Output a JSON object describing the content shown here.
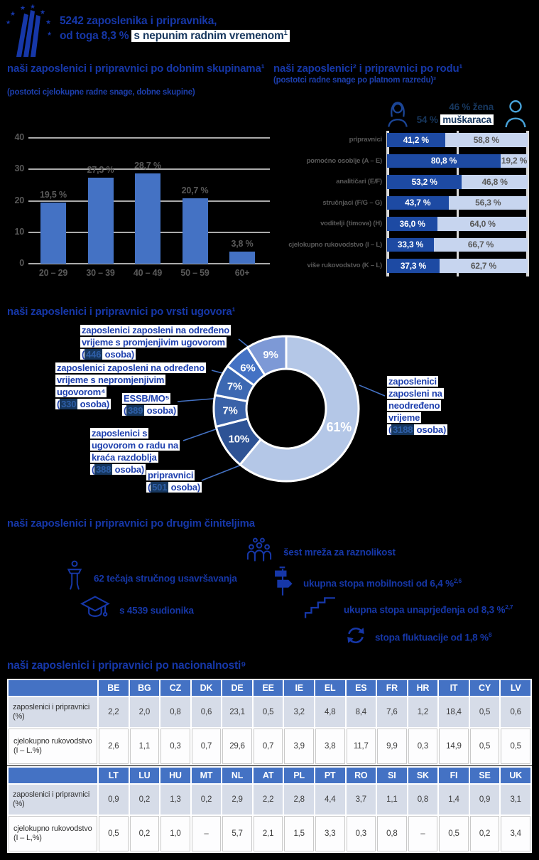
{
  "accent_colors": {
    "heading_blue": "#1637a8",
    "navy": "#17375e",
    "bar_blue": "#4472c4",
    "dark_bar": "#1d4aa3",
    "light_bar": "#c7d5ef"
  },
  "header": {
    "line1": "5242 zaposlenika i pripravnika,",
    "line2_plain": "od toga 8,3 % ",
    "line2_highlight": "s nepunim radnim vremenom",
    "line2_sup": "1"
  },
  "age": {
    "title": "naši zaposlenici i pripravnici po dobnim skupinama¹",
    "subtitle": "(postotci cjelokupne radne snage, dobne skupine)"
  },
  "gender": {
    "title": "naši zaposlenici² i pripravnici po rodu¹",
    "subtitle": "(postotci radne snage po platnom razredu)³",
    "women_total": "46 % žena",
    "men_total_plain": "54 % ",
    "men_total_highlight": "muškaraca"
  },
  "contract": {
    "title": "naši zaposlenici i pripravnici po vrsti ugovora¹"
  },
  "factors": {
    "title": "naši zaposlenici i pripravnici po drugim činiteljima",
    "items": [
      {
        "icon": "diversity-network-icon",
        "text": "šest mreža za raznolikost",
        "sup": ""
      },
      {
        "icon": "trainer-lectern-icon",
        "text": "62 tečaja stručnog usavršavanja",
        "sup": ""
      },
      {
        "icon": "signpost-icon",
        "text": "ukupna stopa mobilnosti od 6,4 %",
        "sup": "2,6"
      },
      {
        "icon": "graduation-cap-icon",
        "text": "s 4539 sudionika",
        "sup": ""
      },
      {
        "icon": "stairs-icon",
        "text": "ukupna stopa unaprjeđenja od 8,3 %",
        "sup": "2,7"
      },
      {
        "icon": "turnover-arrows-icon",
        "text": "stopa fluktuacije od 1,8 %",
        "sup": "8"
      }
    ]
  },
  "nationality": {
    "title": "naši zaposlenici i pripravnici po nacionalnosti⁹"
  },
  "chart_data": [
    {
      "type": "bar",
      "title": "naši zaposlenici i pripravnici po dobnim skupinama¹",
      "subtitle": "(postotci cjelokupne radne snage, dobne skupine)",
      "categories": [
        "20 – 29",
        "30 – 39",
        "40 – 49",
        "50 – 59",
        "60+"
      ],
      "values": [
        19.5,
        27.3,
        28.7,
        20.7,
        3.8
      ],
      "labels": [
        "19,5 %",
        "27,3 %",
        "28,7 %",
        "20,7 %",
        "3,8 %"
      ],
      "ylim": [
        0,
        40
      ],
      "yticks": [
        0,
        10,
        20,
        30,
        40
      ],
      "grid": true,
      "bar_color": "#4472c4"
    },
    {
      "type": "stacked-bar-horizontal",
      "title": "naši zaposlenici² i pripravnici po rodu¹",
      "subtitle": "(postotci radne snage po platnom razredu)³",
      "totals": {
        "women": "46 % žena",
        "men": "54 % muškaraca"
      },
      "colors": {
        "women": "#1d4aa3",
        "men": "#c7d5ef"
      },
      "rows": [
        {
          "category": "pripravnici",
          "women": 41.2,
          "men": 58.8,
          "women_label": "41,2 %",
          "men_label": "58,8 %"
        },
        {
          "category": "pomoćno osoblje (A – E)",
          "women": 80.8,
          "men": 19.2,
          "women_label": "80,8 %",
          "men_label": "19,2 %"
        },
        {
          "category": "analitičari (E/F)",
          "women": 53.2,
          "men": 46.8,
          "women_label": "53,2 %",
          "men_label": "46,8 %"
        },
        {
          "category": "stručnjaci (F/G – G)",
          "women": 43.7,
          "men": 56.3,
          "women_label": "43,7 %",
          "men_label": "56,3 %"
        },
        {
          "category": "voditelji (timova) (H)",
          "women": 36.0,
          "men": 64.0,
          "women_label": "36,0 %",
          "men_label": "64,0 %"
        },
        {
          "category": "cjelokupno rukovodstvo  (I – L)",
          "women": 33.3,
          "men": 66.7,
          "women_label": "33,3 %",
          "men_label": "66,7 %"
        },
        {
          "category": "više rukovodstvo  (K – L)",
          "women": 37.3,
          "men": 62.7,
          "women_label": "37,3 %",
          "men_label": "62,7 %"
        }
      ]
    },
    {
      "type": "pie",
      "title": "naši zaposlenici i pripravnici po vrsti ugovora¹",
      "slices": [
        {
          "pct": 61,
          "pct_label": "61%",
          "color": "#b4c7e7",
          "label": "zaposlenici zaposleni na neodređeno vrijeme",
          "count_prefix": "(",
          "count": "3188",
          "count_suffix": " osoba)"
        },
        {
          "pct": 10,
          "pct_label": "10%",
          "color": "#2e5395",
          "label": "pripravnici",
          "count_prefix": "(",
          "count": "501",
          "count_suffix": " osoba)"
        },
        {
          "pct": 7,
          "pct_label": "7%",
          "color": "#3a62a8",
          "label": "zaposlenici s ugovorom o radu na kraća razdoblja",
          "count_prefix": "(",
          "count": "388",
          "count_suffix": " osoba)"
        },
        {
          "pct": 7,
          "pct_label": "7%",
          "color": "#3c68b2",
          "label": "ESSB/MO⁵",
          "count_prefix": "(",
          "count": "389",
          "count_suffix": " osoba)"
        },
        {
          "pct": 6,
          "pct_label": "6%",
          "color": "#4472c4",
          "label": "zaposlenici zaposleni na određeno vrijeme s nepromjenjivim ugovorom⁴",
          "count_prefix": "(",
          "count": "330",
          "count_suffix": " osoba)"
        },
        {
          "pct": 9,
          "pct_label": "9%",
          "color": "#7d99d6",
          "label": "zaposlenici zaposleni na određeno vrijeme s promjenjivim ugovorom",
          "count_prefix": "(",
          "count": "446",
          "count_suffix": " osoba)"
        }
      ]
    },
    {
      "type": "table",
      "title": "naši zaposlenici i pripravnici po nacionalnosti⁹",
      "blocks": [
        {
          "columns": [
            "BE",
            "BG",
            "CZ",
            "DK",
            "DE",
            "EE",
            "IE",
            "EL",
            "ES",
            "FR",
            "HR",
            "IT",
            "CY",
            "LV"
          ],
          "rows": [
            {
              "label": "zaposlenici i pripravnici (%)",
              "values": [
                "2,2",
                "2,0",
                "0,8",
                "0,6",
                "23,1",
                "0,5",
                "3,2",
                "4,8",
                "8,4",
                "7,6",
                "1,2",
                "18,4",
                "0,5",
                "0,6"
              ]
            },
            {
              "label": "cjelokupno rukovodstvo (I – L.%)",
              "values": [
                "2,6",
                "1,1",
                "0,3",
                "0,7",
                "29,6",
                "0,7",
                "3,9",
                "3,8",
                "11,7",
                "9,9",
                "0,3",
                "14,9",
                "0,5",
                "0,5"
              ]
            }
          ]
        },
        {
          "columns": [
            "LT",
            "LU",
            "HU",
            "MT",
            "NL",
            "AT",
            "PL",
            "PT",
            "RO",
            "SI",
            "SK",
            "FI",
            "SE",
            "UK"
          ],
          "rows": [
            {
              "label": "zaposlenici i pripravnici (%)",
              "values": [
                "0,9",
                "0,2",
                "1,3",
                "0,2",
                "2,9",
                "2,2",
                "2,8",
                "4,4",
                "3,7",
                "1,1",
                "0,8",
                "1,4",
                "0,9",
                "3,1"
              ]
            },
            {
              "label": "cjelokupno rukovodstvo (I – L,%)",
              "values": [
                "0,5",
                "0,2",
                "1,0",
                "–",
                "5,7",
                "2,1",
                "1,5",
                "3,3",
                "0,3",
                "0,8",
                "–",
                "0,5",
                "0,2",
                "3,4"
              ]
            }
          ]
        }
      ]
    }
  ]
}
